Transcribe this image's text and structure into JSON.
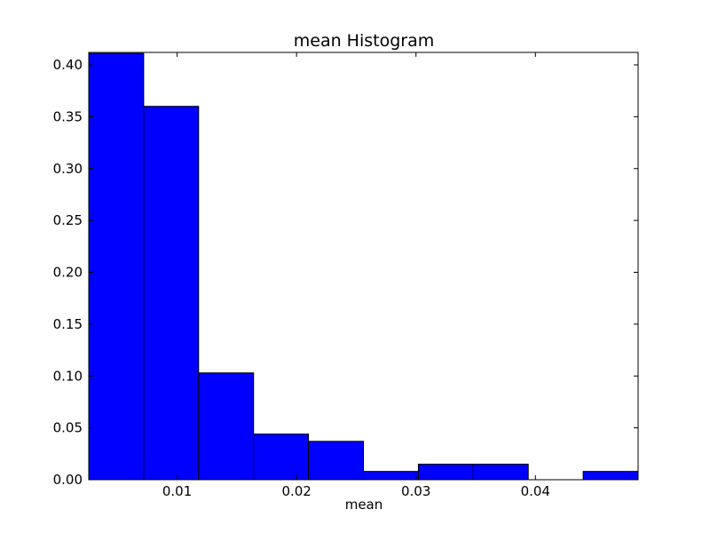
{
  "chart_data": {
    "type": "bar",
    "title": "mean Histogram",
    "xlabel": "mean",
    "ylabel": "",
    "bar_color": "#0000ff",
    "bin_edges": [
      0.0026,
      0.0072,
      0.0118,
      0.0164,
      0.021,
      0.0256,
      0.0302,
      0.0348,
      0.0394,
      0.044,
      0.0486
    ],
    "values": [
      0.411,
      0.36,
      0.103,
      0.044,
      0.037,
      0.008,
      0.015,
      0.015,
      0.0,
      0.008
    ],
    "xlim": [
      0.0026,
      0.0486
    ],
    "ylim": [
      0.0,
      0.412
    ],
    "xticks": [
      0.01,
      0.02,
      0.03,
      0.04
    ],
    "xtick_labels": [
      "0.01",
      "0.02",
      "0.03",
      "0.04"
    ],
    "yticks": [
      0.0,
      0.05,
      0.1,
      0.15,
      0.2,
      0.25,
      0.3,
      0.35,
      0.4
    ],
    "ytick_labels": [
      "0.00",
      "0.05",
      "0.10",
      "0.15",
      "0.20",
      "0.25",
      "0.30",
      "0.35",
      "0.40"
    ],
    "grid": false,
    "legend": "none"
  }
}
